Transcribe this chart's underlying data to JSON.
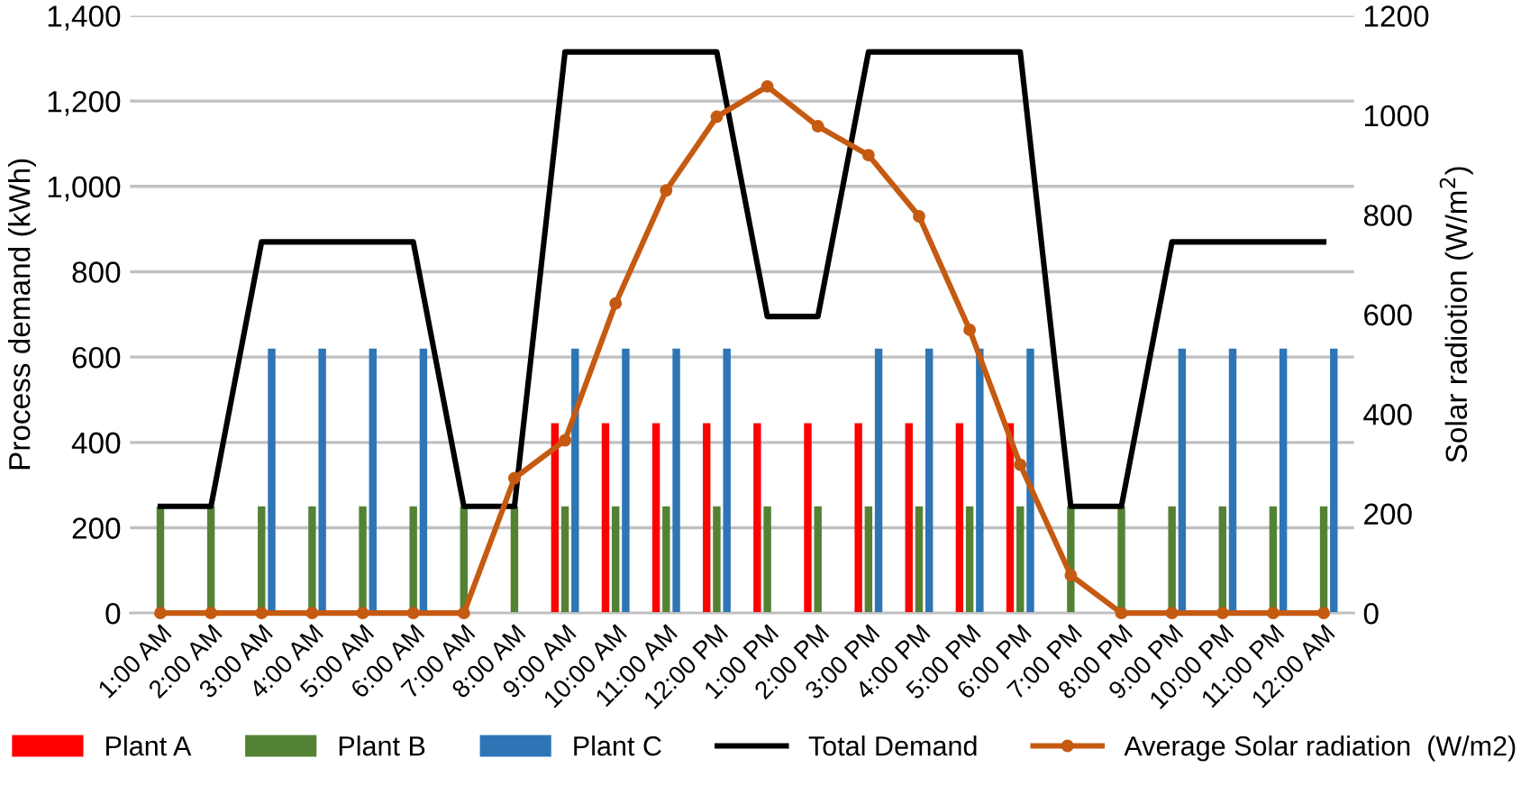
{
  "chart_data": {
    "type": "bar",
    "ylabel": "Process demand (kWh)",
    "y2label": "Solar radiotion (W/m$^{2}$)",
    "categories": [
      "1:00 AM",
      "2:00 AM",
      "3:00 AM",
      "4:00 AM",
      "5:00 AM",
      "6:00 AM",
      "7:00 AM",
      "8:00 AM",
      "9:00 AM",
      "10:00 AM",
      "11:00 AM",
      "12:00 PM",
      "1:00 PM",
      "2:00 PM",
      "3:00 PM",
      "4:00 PM",
      "5:00 PM",
      "6:00 PM",
      "7:00 PM",
      "8:00 PM",
      "9:00 PM",
      "10:00 PM",
      "11:00 PM",
      "12:00 AM"
    ],
    "series": [
      {
        "name": "Plant A",
        "color": "#ff0000",
        "values": [
          null,
          null,
          null,
          null,
          null,
          null,
          null,
          null,
          445,
          445,
          445,
          445,
          445,
          445,
          445,
          445,
          445,
          445,
          null,
          null,
          null,
          null,
          null,
          null
        ]
      },
      {
        "name": "Plant B",
        "color": "#548235",
        "values": [
          250,
          250,
          250,
          250,
          250,
          250,
          250,
          250,
          250,
          250,
          250,
          250,
          250,
          250,
          250,
          250,
          250,
          250,
          250,
          250,
          250,
          250,
          250,
          250
        ]
      },
      {
        "name": "Plant C",
        "color": "#2e75b6",
        "values": [
          null,
          null,
          620,
          620,
          620,
          620,
          null,
          null,
          620,
          620,
          620,
          620,
          null,
          null,
          620,
          620,
          620,
          620,
          null,
          null,
          620,
          620,
          620,
          620
        ]
      },
      {
        "name": "Total Demand",
        "color": "#000000",
        "type": "line",
        "marker": "none",
        "values": [
          250,
          250,
          870,
          870,
          870,
          870,
          250,
          250,
          1315,
          1315,
          1315,
          1315,
          695,
          695,
          1315,
          1315,
          1315,
          1315,
          250,
          250,
          870,
          870,
          870,
          870
        ]
      },
      {
        "name": "Average Solar radiation  (W/m2)",
        "color": "#c55a11",
        "type": "line",
        "marker": "circle",
        "axis": "y2",
        "values": [
          0,
          0,
          0,
          0,
          0,
          0,
          0,
          271,
          347,
          622,
          849,
          997,
          1058,
          978,
          920,
          797,
          569,
          298,
          76,
          0,
          0,
          0,
          0,
          0
        ]
      }
    ],
    "ylim": [
      0,
      1400
    ],
    "yticks": [
      0,
      200,
      400,
      600,
      800,
      {
        "value": 1000,
        "label": "1,000"
      },
      {
        "value": 1200,
        "label": "1,200"
      },
      {
        "value": 1400,
        "label": "1,400"
      }
    ],
    "y2lim": [
      0,
      1200
    ],
    "y2ticks": [
      0,
      200,
      400,
      600,
      800,
      1000,
      1200
    ],
    "grid": "y",
    "legend": "bottom",
    "line_style": "solid"
  }
}
